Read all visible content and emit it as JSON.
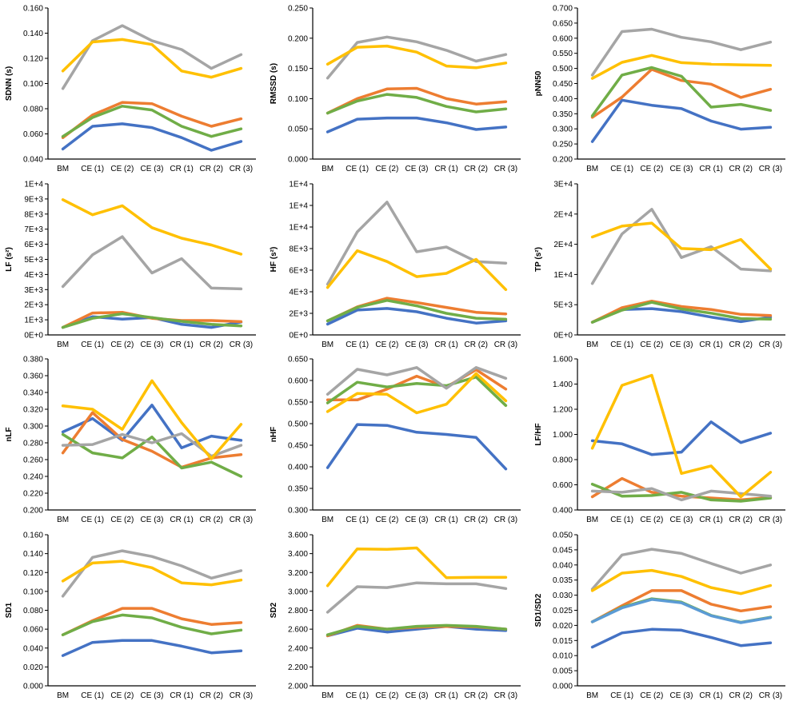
{
  "categories": [
    "BM",
    "CE (1)",
    "CE (2)",
    "CE (3)",
    "CR (1)",
    "CR (2)",
    "CR (3)"
  ],
  "colors": {
    "blue": "#4472C4",
    "orange": "#ED7D31",
    "green": "#70AD47",
    "gray": "#A5A5A5",
    "yellow": "#FFC000",
    "lightblue": "#5B9BD5"
  },
  "chart_data": [
    {
      "type": "line",
      "ylabel": "SDNN (s)",
      "ticks": [
        "0.040",
        "0.060",
        "0.080",
        "0.100",
        "0.120",
        "0.140",
        "0.160"
      ],
      "ylim": [
        0.04,
        0.16
      ],
      "series": [
        {
          "color": "blue",
          "values": [
            0.048,
            0.066,
            0.068,
            0.065,
            0.057,
            0.047,
            0.054
          ]
        },
        {
          "color": "orange",
          "values": [
            0.057,
            0.075,
            0.085,
            0.084,
            0.074,
            0.066,
            0.072
          ]
        },
        {
          "color": "green",
          "values": [
            0.058,
            0.073,
            0.082,
            0.079,
            0.066,
            0.058,
            0.064
          ]
        },
        {
          "color": "gray",
          "values": [
            0.096,
            0.134,
            0.146,
            0.134,
            0.127,
            0.112,
            0.123
          ]
        },
        {
          "color": "yellow",
          "values": [
            0.11,
            0.133,
            0.135,
            0.131,
            0.11,
            0.105,
            0.112
          ]
        }
      ]
    },
    {
      "type": "line",
      "ylabel": "RMSSD (s)",
      "ticks": [
        "0.000",
        "0.050",
        "0.100",
        "0.150",
        "0.200",
        "0.250"
      ],
      "ylim": [
        0,
        0.25
      ],
      "series": [
        {
          "color": "blue",
          "values": [
            0.045,
            0.066,
            0.068,
            0.068,
            0.06,
            0.049,
            0.053
          ]
        },
        {
          "color": "orange",
          "values": [
            0.076,
            0.1,
            0.116,
            0.117,
            0.1,
            0.091,
            0.095
          ]
        },
        {
          "color": "green",
          "values": [
            0.076,
            0.096,
            0.107,
            0.102,
            0.087,
            0.078,
            0.083
          ]
        },
        {
          "color": "gray",
          "values": [
            0.134,
            0.193,
            0.202,
            0.194,
            0.18,
            0.162,
            0.173
          ]
        },
        {
          "color": "yellow",
          "values": [
            0.157,
            0.185,
            0.187,
            0.177,
            0.154,
            0.151,
            0.159
          ]
        }
      ]
    },
    {
      "type": "line",
      "ylabel": "pNN50",
      "ticks": [
        "0.200",
        "0.250",
        "0.300",
        "0.350",
        "0.400",
        "0.450",
        "0.500",
        "0.550",
        "0.600",
        "0.650",
        "0.700"
      ],
      "ylim": [
        0.2,
        0.7
      ],
      "series": [
        {
          "color": "blue",
          "values": [
            0.258,
            0.395,
            0.378,
            0.367,
            0.326,
            0.299,
            0.305
          ]
        },
        {
          "color": "orange",
          "values": [
            0.338,
            0.405,
            0.497,
            0.46,
            0.448,
            0.404,
            0.431
          ]
        },
        {
          "color": "green",
          "values": [
            0.343,
            0.478,
            0.503,
            0.474,
            0.372,
            0.381,
            0.361
          ]
        },
        {
          "color": "gray",
          "values": [
            0.478,
            0.622,
            0.63,
            0.603,
            0.588,
            0.562,
            0.587
          ]
        },
        {
          "color": "yellow",
          "values": [
            0.467,
            0.52,
            0.543,
            0.519,
            0.514,
            0.512,
            0.51
          ]
        }
      ]
    },
    {
      "type": "line",
      "ylabel": "LF (s²)",
      "ticks": [
        "0E+0",
        "1E+3",
        "2E+3",
        "3E+3",
        "4E+3",
        "5E+3",
        "6E+3",
        "7E+3",
        "8E+3",
        "9E+3",
        "1E+4"
      ],
      "ylim": [
        0,
        10000
      ],
      "series": [
        {
          "color": "blue",
          "values": [
            500,
            1200,
            1050,
            1150,
            700,
            500,
            850
          ]
        },
        {
          "color": "orange",
          "values": [
            500,
            1450,
            1500,
            1100,
            950,
            950,
            880
          ]
        },
        {
          "color": "green",
          "values": [
            500,
            1100,
            1400,
            1150,
            900,
            700,
            600
          ]
        },
        {
          "color": "gray",
          "values": [
            3200,
            5300,
            6500,
            4100,
            5050,
            3100,
            3050
          ]
        },
        {
          "color": "yellow",
          "values": [
            8950,
            7950,
            8550,
            7100,
            6400,
            5950,
            5350
          ]
        }
      ]
    },
    {
      "type": "line",
      "ylabel": "HF (s²)",
      "ticks": [
        "0E+0",
        "2E+3",
        "4E+3",
        "6E+3",
        "8E+3",
        "1E+4",
        "1E+4",
        "1E+4"
      ],
      "ylim": [
        0,
        14000
      ],
      "series": [
        {
          "color": "blue",
          "values": [
            1000,
            2300,
            2450,
            2150,
            1550,
            1100,
            1300
          ]
        },
        {
          "color": "orange",
          "values": [
            1300,
            2600,
            3400,
            3000,
            2550,
            2100,
            1950
          ]
        },
        {
          "color": "green",
          "values": [
            1300,
            2550,
            3200,
            2700,
            2000,
            1550,
            1450
          ]
        },
        {
          "color": "gray",
          "values": [
            4700,
            9550,
            12300,
            7700,
            8150,
            6800,
            6650
          ]
        },
        {
          "color": "yellow",
          "values": [
            4400,
            7800,
            6800,
            5400,
            5700,
            7000,
            4200
          ]
        }
      ]
    },
    {
      "type": "line",
      "ylabel": "TP (s²)",
      "ticks": [
        "0E+0",
        "5E+3",
        "1E+4",
        "2E+4",
        "2E+4",
        "3E+4"
      ],
      "ylim": [
        0,
        25000
      ],
      "series": [
        {
          "color": "blue",
          "values": [
            2100,
            4200,
            4350,
            3850,
            2950,
            2200,
            2950
          ]
        },
        {
          "color": "orange",
          "values": [
            2100,
            4500,
            5600,
            4700,
            4200,
            3400,
            3200
          ]
        },
        {
          "color": "green",
          "values": [
            2100,
            4100,
            5400,
            4300,
            3600,
            2700,
            2600
          ]
        },
        {
          "color": "gray",
          "values": [
            8500,
            16700,
            20800,
            12800,
            14600,
            10900,
            10600
          ]
        },
        {
          "color": "yellow",
          "values": [
            16200,
            18000,
            18500,
            14300,
            14100,
            15800,
            10900
          ]
        }
      ]
    },
    {
      "type": "line",
      "ylabel": "nLF",
      "ticks": [
        "0.200",
        "0.220",
        "0.240",
        "0.260",
        "0.280",
        "0.300",
        "0.320",
        "0.340",
        "0.360",
        "0.380"
      ],
      "ylim": [
        0.2,
        0.38
      ],
      "series": [
        {
          "color": "blue",
          "values": [
            0.293,
            0.309,
            0.283,
            0.325,
            0.274,
            0.288,
            0.283
          ]
        },
        {
          "color": "orange",
          "values": [
            0.268,
            0.316,
            0.284,
            0.27,
            0.251,
            0.262,
            0.266
          ]
        },
        {
          "color": "green",
          "values": [
            0.29,
            0.268,
            0.262,
            0.287,
            0.25,
            0.257,
            0.24
          ]
        },
        {
          "color": "gray",
          "values": [
            0.277,
            0.278,
            0.29,
            0.28,
            0.291,
            0.264,
            0.277
          ]
        },
        {
          "color": "yellow",
          "values": [
            0.324,
            0.32,
            0.296,
            0.354,
            0.304,
            0.261,
            0.302
          ]
        }
      ]
    },
    {
      "type": "line",
      "ylabel": "nHF",
      "ticks": [
        "0.300",
        "0.350",
        "0.400",
        "0.450",
        "0.500",
        "0.550",
        "0.600",
        "0.650"
      ],
      "ylim": [
        0.3,
        0.65
      ],
      "series": [
        {
          "color": "blue",
          "values": [
            0.398,
            0.498,
            0.496,
            0.48,
            0.475,
            0.468,
            0.395
          ]
        },
        {
          "color": "orange",
          "values": [
            0.555,
            0.555,
            0.58,
            0.61,
            0.585,
            0.625,
            0.58
          ]
        },
        {
          "color": "green",
          "values": [
            0.548,
            0.596,
            0.585,
            0.593,
            0.588,
            0.608,
            0.542
          ]
        },
        {
          "color": "gray",
          "values": [
            0.568,
            0.626,
            0.613,
            0.63,
            0.582,
            0.63,
            0.605
          ]
        },
        {
          "color": "yellow",
          "values": [
            0.528,
            0.57,
            0.568,
            0.525,
            0.545,
            0.616,
            0.553
          ]
        }
      ]
    },
    {
      "type": "line",
      "ylabel": "LF/HF",
      "ticks": [
        "0.400",
        "0.600",
        "0.800",
        "1.000",
        "1.200",
        "1.400",
        "1.600"
      ],
      "ylim": [
        0.4,
        1.6
      ],
      "series": [
        {
          "color": "blue",
          "values": [
            0.95,
            0.925,
            0.84,
            0.86,
            1.1,
            0.935,
            1.01
          ]
        },
        {
          "color": "orange",
          "values": [
            0.505,
            0.65,
            0.54,
            0.51,
            0.495,
            0.48,
            0.5
          ]
        },
        {
          "color": "green",
          "values": [
            0.605,
            0.51,
            0.515,
            0.54,
            0.48,
            0.47,
            0.495
          ]
        },
        {
          "color": "gray",
          "values": [
            0.55,
            0.54,
            0.57,
            0.48,
            0.55,
            0.53,
            0.51
          ]
        },
        {
          "color": "yellow",
          "values": [
            0.89,
            1.39,
            1.47,
            0.69,
            0.75,
            0.505,
            0.7
          ]
        }
      ]
    },
    {
      "type": "line",
      "ylabel": "SD1",
      "ticks": [
        "0.000",
        "0.020",
        "0.040",
        "0.060",
        "0.080",
        "0.100",
        "0.120",
        "0.140",
        "0.160"
      ],
      "ylim": [
        0,
        0.16
      ],
      "series": [
        {
          "color": "blue",
          "values": [
            0.032,
            0.046,
            0.048,
            0.048,
            0.042,
            0.035,
            0.037
          ]
        },
        {
          "color": "orange",
          "values": [
            0.054,
            0.069,
            0.082,
            0.082,
            0.071,
            0.065,
            0.067
          ]
        },
        {
          "color": "green",
          "values": [
            0.054,
            0.068,
            0.075,
            0.072,
            0.062,
            0.055,
            0.059
          ]
        },
        {
          "color": "gray",
          "values": [
            0.095,
            0.136,
            0.143,
            0.137,
            0.127,
            0.114,
            0.122
          ]
        },
        {
          "color": "yellow",
          "values": [
            0.111,
            0.13,
            0.132,
            0.125,
            0.109,
            0.107,
            0.112
          ]
        }
      ]
    },
    {
      "type": "line",
      "ylabel": "SD2",
      "ticks": [
        "2.000",
        "2.200",
        "2.400",
        "2.600",
        "2.800",
        "3.000",
        "3.200",
        "3.400",
        "3.600"
      ],
      "ylim": [
        2.0,
        3.6
      ],
      "series": [
        {
          "color": "blue",
          "values": [
            2.53,
            2.61,
            2.57,
            2.6,
            2.63,
            2.6,
            2.585
          ]
        },
        {
          "color": "orange",
          "values": [
            2.53,
            2.64,
            2.6,
            2.62,
            2.63,
            2.625,
            2.6
          ]
        },
        {
          "color": "green",
          "values": [
            2.54,
            2.63,
            2.6,
            2.63,
            2.64,
            2.63,
            2.6
          ]
        },
        {
          "color": "gray",
          "values": [
            2.78,
            3.05,
            3.04,
            3.09,
            3.08,
            3.08,
            3.03
          ]
        },
        {
          "color": "yellow",
          "values": [
            3.06,
            3.45,
            3.445,
            3.46,
            3.145,
            3.15,
            3.15
          ]
        }
      ]
    },
    {
      "type": "line",
      "ylabel": "SD1/SD2",
      "ticks": [
        "0.000",
        "0.005",
        "0.010",
        "0.015",
        "0.020",
        "0.025",
        "0.030",
        "0.035",
        "0.040",
        "0.045",
        "0.050"
      ],
      "ylim": [
        0,
        0.05
      ],
      "series": [
        {
          "color": "blue",
          "values": [
            0.0128,
            0.0175,
            0.0187,
            0.0184,
            0.016,
            0.0133,
            0.0142
          ]
        },
        {
          "color": "orange",
          "values": [
            0.0212,
            0.0265,
            0.0315,
            0.0315,
            0.027,
            0.0248,
            0.0262
          ]
        },
        {
          "color": "green",
          "values": [
            0.0212,
            0.026,
            0.0288,
            0.0277,
            0.0233,
            0.021,
            0.0227
          ]
        },
        {
          "color": "lightblue",
          "values": [
            0.0212,
            0.0258,
            0.0286,
            0.0275,
            0.0232,
            0.0209,
            0.0226
          ]
        },
        {
          "color": "gray",
          "values": [
            0.032,
            0.0433,
            0.0452,
            0.0438,
            0.0405,
            0.0373,
            0.04
          ]
        },
        {
          "color": "yellow",
          "values": [
            0.0315,
            0.0373,
            0.0382,
            0.0362,
            0.0325,
            0.0305,
            0.0332
          ]
        }
      ]
    }
  ]
}
